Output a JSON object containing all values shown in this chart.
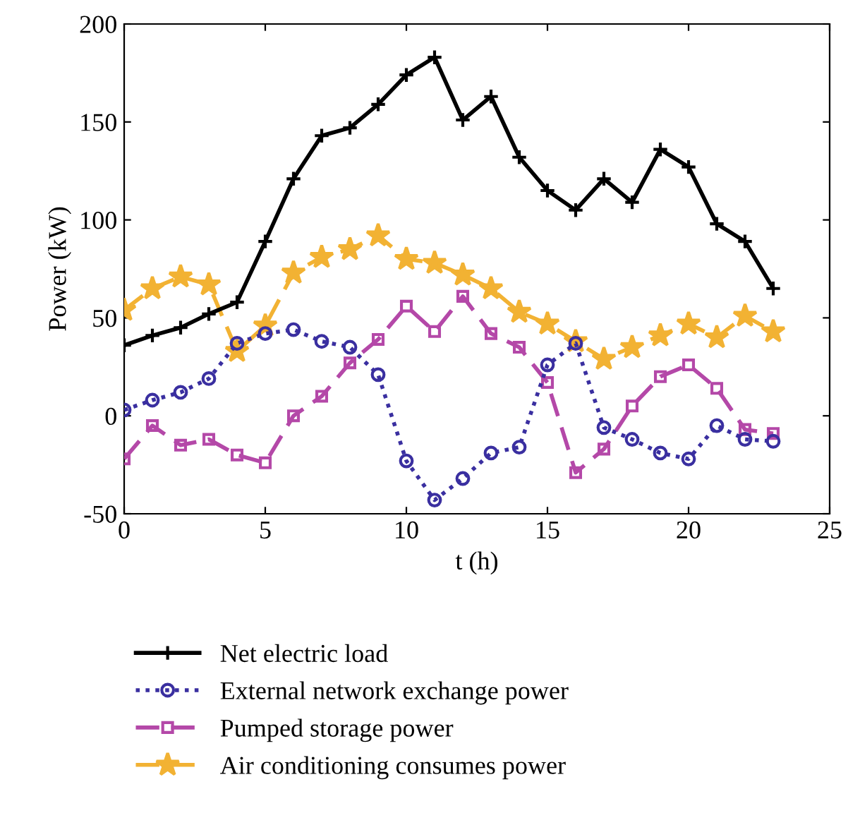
{
  "chart_data": {
    "type": "line",
    "xlabel": "t (h)",
    "ylabel": "Power (kW)",
    "x": [
      0,
      1,
      2,
      3,
      4,
      5,
      6,
      7,
      8,
      9,
      10,
      11,
      12,
      13,
      14,
      15,
      16,
      17,
      18,
      19,
      20,
      21,
      22,
      23
    ],
    "xlim": [
      0,
      25
    ],
    "xticks": [
      0,
      5,
      10,
      15,
      20,
      25
    ],
    "ylim": [
      -50,
      200
    ],
    "yticks": [
      -50,
      0,
      50,
      100,
      150,
      200
    ],
    "grid": false,
    "legend": "bottom",
    "series": [
      {
        "name": "Net electric load",
        "color": "#000000",
        "marker": "cross",
        "line_style": "solid",
        "values": [
          36,
          41,
          45,
          52,
          58,
          89,
          121,
          143,
          147,
          159,
          174,
          183,
          151,
          163,
          132,
          115,
          105,
          121,
          109,
          136,
          127,
          98,
          89,
          65
        ]
      },
      {
        "name": "External network exchange power",
        "color": "#3a2fa0",
        "marker": "circle",
        "line_style": "dotted",
        "values": [
          3,
          8,
          12,
          19,
          37,
          42,
          44,
          38,
          35,
          21,
          -23,
          -43,
          -32,
          -19,
          -16,
          26,
          37,
          -6,
          -12,
          -19,
          -22,
          -5,
          -12,
          -13
        ]
      },
      {
        "name": "Pumped storage power",
        "color": "#b448a8",
        "marker": "square",
        "line_style": "dashed",
        "values": [
          -22,
          -5,
          -15,
          -12,
          -20,
          -24,
          0,
          10,
          27,
          39,
          56,
          43,
          61,
          42,
          35,
          17,
          -29,
          -17,
          5,
          20,
          26,
          14,
          -7,
          -9
        ]
      },
      {
        "name": "Air conditioning consumes power",
        "color": "#f2b233",
        "marker": "star",
        "line_style": "dashed",
        "values": [
          54,
          65,
          71,
          67,
          33,
          46,
          73,
          81,
          85,
          92,
          80,
          78,
          72,
          65,
          53,
          47,
          38,
          29,
          35,
          41,
          47,
          40,
          51,
          43
        ]
      }
    ]
  }
}
